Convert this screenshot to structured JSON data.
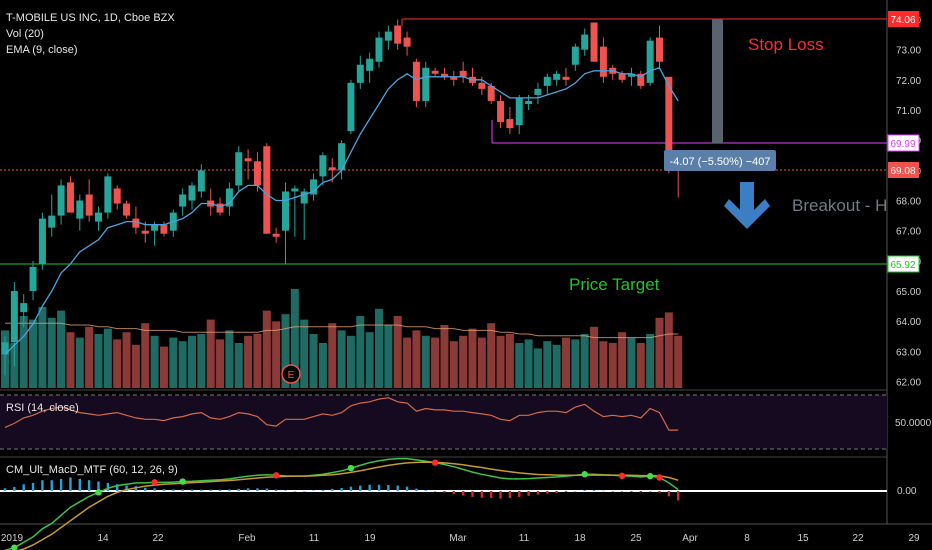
{
  "chart_data": {
    "type": "candlestick",
    "legend": {
      "symbol": "T-MOBILE US INC, 1D, Cboe BZX",
      "volume": "Vol (20)",
      "ema": "EMA (9, close)"
    },
    "colors": {
      "up": "#26a69a",
      "down": "#ef5350",
      "up_volume": "#1f6b63",
      "down_volume": "#8b3a38",
      "ema": "#4aa3df",
      "volume_ma": "#e0a070"
    },
    "price_axis": {
      "labels": [
        "74.00",
        "73.00",
        "72.00",
        "71.00",
        "70.00",
        "69.00",
        "68.00",
        "67.00",
        "66.00",
        "65.00",
        "64.00",
        "63.00",
        "62.00"
      ],
      "min": 61.5,
      "max": 74.5
    },
    "time_axis": {
      "labels": [
        "2019",
        "14",
        "22",
        "Feb",
        "11",
        "19",
        "Mar",
        "11",
        "18",
        "25",
        "Apr",
        "8",
        "15",
        "22",
        "29"
      ]
    },
    "candles": [
      {
        "o": 62.9,
        "h": 63.5,
        "l": 62.2,
        "c": 63.3
      },
      {
        "o": 63.3,
        "h": 65.3,
        "l": 62.5,
        "c": 65.0
      },
      {
        "o": 64.3,
        "h": 64.9,
        "l": 63.8,
        "c": 64.6
      },
      {
        "o": 65.0,
        "h": 66.0,
        "l": 64.7,
        "c": 65.8
      },
      {
        "o": 65.9,
        "h": 67.6,
        "l": 65.7,
        "c": 67.4
      },
      {
        "o": 67.1,
        "h": 68.2,
        "l": 66.8,
        "c": 67.5
      },
      {
        "o": 67.5,
        "h": 68.7,
        "l": 67.2,
        "c": 68.5
      },
      {
        "o": 68.6,
        "h": 68.8,
        "l": 67.6,
        "c": 67.6
      },
      {
        "o": 67.4,
        "h": 68.2,
        "l": 67.0,
        "c": 68.0
      },
      {
        "o": 68.2,
        "h": 68.7,
        "l": 67.3,
        "c": 67.5
      },
      {
        "o": 67.3,
        "h": 67.8,
        "l": 67.0,
        "c": 67.6
      },
      {
        "o": 67.6,
        "h": 68.9,
        "l": 67.4,
        "c": 68.8
      },
      {
        "o": 68.4,
        "h": 68.5,
        "l": 67.7,
        "c": 67.9
      },
      {
        "o": 67.9,
        "h": 68.0,
        "l": 67.4,
        "c": 67.5
      },
      {
        "o": 67.4,
        "h": 67.8,
        "l": 66.9,
        "c": 67.1
      },
      {
        "o": 67.0,
        "h": 67.3,
        "l": 66.6,
        "c": 66.9
      },
      {
        "o": 67.0,
        "h": 67.3,
        "l": 66.5,
        "c": 67.2
      },
      {
        "o": 67.2,
        "h": 67.3,
        "l": 66.8,
        "c": 66.9
      },
      {
        "o": 67.0,
        "h": 67.7,
        "l": 66.8,
        "c": 67.6
      },
      {
        "o": 67.8,
        "h": 68.4,
        "l": 67.5,
        "c": 68.2
      },
      {
        "o": 68.0,
        "h": 68.6,
        "l": 67.7,
        "c": 68.5
      },
      {
        "o": 68.3,
        "h": 69.2,
        "l": 68.1,
        "c": 69.0
      },
      {
        "o": 68.0,
        "h": 68.4,
        "l": 67.5,
        "c": 67.8
      },
      {
        "o": 67.9,
        "h": 68.1,
        "l": 67.5,
        "c": 67.6
      },
      {
        "o": 67.8,
        "h": 68.6,
        "l": 67.5,
        "c": 68.4
      },
      {
        "o": 68.5,
        "h": 69.8,
        "l": 68.3,
        "c": 69.6
      },
      {
        "o": 69.4,
        "h": 69.7,
        "l": 68.7,
        "c": 69.3
      },
      {
        "o": 69.3,
        "h": 69.6,
        "l": 68.3,
        "c": 68.5
      },
      {
        "o": 69.8,
        "h": 69.9,
        "l": 66.9,
        "c": 66.9
      },
      {
        "o": 66.9,
        "h": 67.1,
        "l": 66.6,
        "c": 66.8
      },
      {
        "o": 67.0,
        "h": 68.6,
        "l": 65.9,
        "c": 68.3
      },
      {
        "o": 68.3,
        "h": 68.5,
        "l": 66.8,
        "c": 68.4
      },
      {
        "o": 67.9,
        "h": 68.4,
        "l": 66.7,
        "c": 68.3
      },
      {
        "o": 68.2,
        "h": 68.9,
        "l": 68.0,
        "c": 68.7
      },
      {
        "o": 68.8,
        "h": 69.6,
        "l": 68.5,
        "c": 69.5
      },
      {
        "o": 69.1,
        "h": 69.4,
        "l": 68.6,
        "c": 69.0
      },
      {
        "o": 69.0,
        "h": 70.0,
        "l": 68.7,
        "c": 69.9
      },
      {
        "o": 70.3,
        "h": 72.0,
        "l": 70.2,
        "c": 71.9
      },
      {
        "o": 71.9,
        "h": 72.8,
        "l": 71.7,
        "c": 72.5
      },
      {
        "o": 72.3,
        "h": 72.9,
        "l": 71.9,
        "c": 72.7
      },
      {
        "o": 72.6,
        "h": 73.6,
        "l": 72.4,
        "c": 73.4
      },
      {
        "o": 73.3,
        "h": 73.8,
        "l": 73.0,
        "c": 73.6
      },
      {
        "o": 73.8,
        "h": 74.0,
        "l": 73.0,
        "c": 73.2
      },
      {
        "o": 73.4,
        "h": 73.6,
        "l": 72.8,
        "c": 73.1
      },
      {
        "o": 72.6,
        "h": 72.7,
        "l": 71.1,
        "c": 71.3
      },
      {
        "o": 71.3,
        "h": 72.6,
        "l": 71.1,
        "c": 72.4
      },
      {
        "o": 72.3,
        "h": 72.4,
        "l": 72.1,
        "c": 72.2
      },
      {
        "o": 72.2,
        "h": 72.4,
        "l": 72.0,
        "c": 72.1
      },
      {
        "o": 72.1,
        "h": 72.3,
        "l": 71.8,
        "c": 72.0
      },
      {
        "o": 72.3,
        "h": 72.6,
        "l": 71.9,
        "c": 72.1
      },
      {
        "o": 72.1,
        "h": 72.4,
        "l": 71.8,
        "c": 71.9
      },
      {
        "o": 71.9,
        "h": 72.1,
        "l": 71.5,
        "c": 71.7
      },
      {
        "o": 71.8,
        "h": 71.9,
        "l": 71.2,
        "c": 71.3
      },
      {
        "o": 71.3,
        "h": 71.5,
        "l": 70.4,
        "c": 70.6
      },
      {
        "o": 70.7,
        "h": 71.1,
        "l": 70.2,
        "c": 70.4
      },
      {
        "o": 70.5,
        "h": 71.5,
        "l": 70.2,
        "c": 71.4
      },
      {
        "o": 71.2,
        "h": 71.5,
        "l": 71.0,
        "c": 71.3
      },
      {
        "o": 71.5,
        "h": 71.9,
        "l": 71.2,
        "c": 71.7
      },
      {
        "o": 71.8,
        "h": 72.2,
        "l": 71.5,
        "c": 72.1
      },
      {
        "o": 72.0,
        "h": 72.3,
        "l": 71.8,
        "c": 72.2
      },
      {
        "o": 72.1,
        "h": 72.4,
        "l": 71.8,
        "c": 72.0
      },
      {
        "o": 72.5,
        "h": 73.2,
        "l": 72.3,
        "c": 73.1
      },
      {
        "o": 73.0,
        "h": 73.7,
        "l": 72.8,
        "c": 73.5
      },
      {
        "o": 73.9,
        "h": 73.9,
        "l": 72.6,
        "c": 72.6
      },
      {
        "o": 73.1,
        "h": 73.4,
        "l": 71.9,
        "c": 72.1
      },
      {
        "o": 72.4,
        "h": 72.5,
        "l": 72.0,
        "c": 72.2
      },
      {
        "o": 72.2,
        "h": 72.3,
        "l": 71.9,
        "c": 72.0
      },
      {
        "o": 72.1,
        "h": 72.4,
        "l": 71.8,
        "c": 72.2
      },
      {
        "o": 72.2,
        "h": 72.3,
        "l": 71.7,
        "c": 71.8
      },
      {
        "o": 71.9,
        "h": 73.4,
        "l": 71.8,
        "c": 73.3
      },
      {
        "o": 73.4,
        "h": 73.8,
        "l": 72.4,
        "c": 72.6
      },
      {
        "o": 72.1,
        "h": 72.1,
        "l": 68.9,
        "c": 69.1
      },
      {
        "o": 69.2,
        "h": 69.5,
        "l": 68.1,
        "c": 69.1
      }
    ],
    "ema_line": [
      62.9,
      63.2,
      63.5,
      63.9,
      64.5,
      65.0,
      65.6,
      65.9,
      66.3,
      66.5,
      66.7,
      67.1,
      67.2,
      67.3,
      67.3,
      67.2,
      67.2,
      67.2,
      67.3,
      67.4,
      67.6,
      67.9,
      67.9,
      67.8,
      67.9,
      68.3,
      68.5,
      68.5,
      68.2,
      68.0,
      68.0,
      68.1,
      68.2,
      68.3,
      68.6,
      68.7,
      69.0,
      69.6,
      70.2,
      70.7,
      71.2,
      71.7,
      72.0,
      72.2,
      72.0,
      72.1,
      72.1,
      72.1,
      72.1,
      72.1,
      72.0,
      72.0,
      71.8,
      71.6,
      71.4,
      71.4,
      71.4,
      71.4,
      71.5,
      71.6,
      71.7,
      71.9,
      72.2,
      72.3,
      72.3,
      72.3,
      72.2,
      72.2,
      72.1,
      72.3,
      72.4,
      71.8,
      71.3
    ],
    "volume": [
      3.2,
      2.5,
      4.0,
      3.8,
      4.5,
      3.9,
      4.3,
      3.1,
      2.8,
      3.4,
      3.0,
      3.3,
      2.7,
      3.1,
      2.4,
      3.6,
      2.9,
      2.3,
      2.8,
      2.6,
      2.9,
      3.0,
      3.8,
      2.7,
      3.2,
      2.5,
      2.9,
      3.0,
      4.3,
      3.7,
      4.1,
      5.5,
      3.8,
      3.0,
      2.5,
      3.6,
      3.2,
      2.9,
      4.0,
      3.1,
      4.4,
      3.5,
      4.0,
      2.8,
      3.2,
      2.9,
      2.8,
      3.5,
      2.6,
      2.9,
      3.3,
      2.8,
      3.6,
      2.9,
      3.0,
      2.5,
      2.7,
      2.2,
      2.6,
      2.4,
      2.8,
      2.7,
      3.0,
      3.4,
      2.6,
      2.5,
      3.1,
      2.8,
      2.5,
      3.0,
      3.9,
      4.2,
      2.9
    ],
    "volume_ma": [
      3.6,
      3.6,
      3.6,
      3.6,
      3.6,
      3.6,
      3.6,
      3.5,
      3.5,
      3.5,
      3.4,
      3.4,
      3.3,
      3.3,
      3.3,
      3.2,
      3.2,
      3.2,
      3.2,
      3.1,
      3.1,
      3.1,
      3.1,
      3.1,
      3.1,
      3.1,
      3.1,
      3.1,
      3.2,
      3.2,
      3.3,
      3.4,
      3.4,
      3.4,
      3.4,
      3.4,
      3.4,
      3.4,
      3.5,
      3.5,
      3.5,
      3.5,
      3.5,
      3.4,
      3.4,
      3.4,
      3.3,
      3.3,
      3.3,
      3.2,
      3.2,
      3.2,
      3.2,
      3.1,
      3.1,
      3.0,
      3.0,
      2.9,
      2.9,
      2.9,
      2.9,
      2.9,
      2.9,
      2.8,
      2.8,
      2.8,
      2.8,
      2.8,
      2.8,
      2.8,
      2.9,
      3.0,
      3.0
    ],
    "rsi": {
      "label": "RSI (14, close)",
      "axis_label": "50.0000",
      "values": [
        46,
        49,
        53,
        55,
        58,
        60,
        61,
        59,
        57,
        56,
        55,
        56,
        57,
        55,
        53,
        52,
        52,
        51,
        53,
        54,
        56,
        57,
        53,
        52,
        54,
        57,
        56,
        54,
        48,
        47,
        52,
        52,
        52,
        54,
        56,
        55,
        57,
        62,
        64,
        65,
        67,
        68,
        65,
        64,
        58,
        60,
        59,
        59,
        58,
        58,
        57,
        56,
        55,
        52,
        51,
        55,
        55,
        57,
        58,
        58,
        57,
        61,
        63,
        58,
        54,
        55,
        54,
        55,
        53,
        60,
        57,
        44,
        44
      ]
    },
    "macd": {
      "label": "CM_Ult_MacD_MTF (60, 12, 26, 9)",
      "axis_label": "0.00",
      "macd_line": [
        -2.2,
        -2.1,
        -1.9,
        -1.7,
        -1.4,
        -1.2,
        -0.9,
        -0.6,
        -0.4,
        -0.2,
        -0.05,
        0.1,
        0.2,
        0.25,
        0.3,
        0.3,
        0.32,
        0.32,
        0.33,
        0.35,
        0.36,
        0.38,
        0.4,
        0.42,
        0.45,
        0.5,
        0.55,
        0.58,
        0.6,
        0.58,
        0.56,
        0.55,
        0.55,
        0.58,
        0.62,
        0.68,
        0.75,
        0.85,
        0.95,
        1.05,
        1.12,
        1.17,
        1.2,
        1.2,
        1.15,
        1.1,
        1.05,
        0.98,
        0.9,
        0.8,
        0.7,
        0.62,
        0.55,
        0.48,
        0.45,
        0.45,
        0.46,
        0.48,
        0.5,
        0.52,
        0.55,
        0.58,
        0.62,
        0.62,
        0.6,
        0.58,
        0.56,
        0.55,
        0.52,
        0.55,
        0.5,
        0.3,
        0.05
      ],
      "signal_line": [
        -2.3,
        -2.25,
        -2.15,
        -2.0,
        -1.8,
        -1.6,
        -1.35,
        -1.1,
        -0.85,
        -0.6,
        -0.4,
        -0.2,
        -0.05,
        0.05,
        0.12,
        0.18,
        0.22,
        0.25,
        0.27,
        0.29,
        0.31,
        0.33,
        0.35,
        0.37,
        0.39,
        0.42,
        0.45,
        0.48,
        0.51,
        0.53,
        0.54,
        0.55,
        0.55,
        0.56,
        0.58,
        0.6,
        0.64,
        0.69,
        0.75,
        0.82,
        0.89,
        0.95,
        1.0,
        1.04,
        1.06,
        1.07,
        1.06,
        1.04,
        1.01,
        0.97,
        0.92,
        0.87,
        0.81,
        0.76,
        0.71,
        0.67,
        0.64,
        0.61,
        0.6,
        0.59,
        0.58,
        0.58,
        0.59,
        0.59,
        0.59,
        0.59,
        0.58,
        0.58,
        0.57,
        0.57,
        0.56,
        0.5,
        0.4
      ],
      "histogram": [
        0.1,
        0.15,
        0.25,
        0.3,
        0.4,
        0.4,
        0.45,
        0.5,
        0.45,
        0.4,
        0.35,
        0.3,
        0.25,
        0.2,
        0.18,
        0.12,
        0.1,
        0.07,
        0.06,
        0.06,
        0.05,
        0.05,
        0.05,
        0.05,
        0.06,
        0.08,
        0.1,
        0.1,
        0.09,
        0.05,
        0.02,
        0.0,
        0.0,
        0.02,
        0.04,
        0.08,
        0.11,
        0.16,
        0.2,
        0.23,
        0.23,
        0.22,
        0.2,
        0.16,
        0.09,
        0.03,
        -0.01,
        -0.06,
        -0.11,
        -0.17,
        -0.22,
        -0.25,
        -0.26,
        -0.28,
        -0.26,
        -0.22,
        -0.18,
        -0.13,
        -0.1,
        -0.07,
        -0.03,
        0.0,
        0.03,
        0.03,
        0.01,
        -0.01,
        -0.02,
        -0.03,
        -0.05,
        -0.02,
        -0.06,
        -0.2,
        -0.35
      ],
      "crosses": [
        {
          "i": 1,
          "color": "green"
        },
        {
          "i": 10,
          "color": "green"
        },
        {
          "i": 16,
          "color": "red"
        },
        {
          "i": 19,
          "color": "green"
        },
        {
          "i": 29,
          "color": "red"
        },
        {
          "i": 37,
          "color": "green"
        },
        {
          "i": 46,
          "color": "red"
        },
        {
          "i": 62,
          "color": "green"
        },
        {
          "i": 66,
          "color": "red"
        },
        {
          "i": 69,
          "color": "green"
        },
        {
          "i": 70,
          "color": "red"
        }
      ]
    },
    "levels": {
      "stop_loss": {
        "value": 74.06,
        "label": "74.06",
        "text": "Stop Loss",
        "color": "#ff2b2b"
      },
      "resistance": {
        "value": 69.99,
        "label": "69.99",
        "color": "#e040fb"
      },
      "current": {
        "value": 69.08,
        "label": "69.08",
        "color": "#ef5350"
      },
      "target": {
        "value": 65.92,
        "label": "65.92",
        "text": "Price Target",
        "color": "#21c32b"
      }
    },
    "annotations": {
      "measure_label": "-4.07 (−5.50%) −407",
      "breakout_text": "Breakout - H",
      "earnings_marker": "E"
    }
  }
}
